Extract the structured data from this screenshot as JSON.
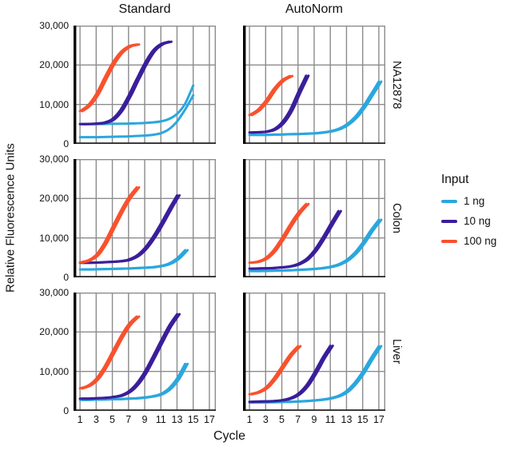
{
  "figure": {
    "col_titles": [
      "Standard",
      "AutoNorm"
    ],
    "row_titles": [
      "NA12878",
      "Colon",
      "Liver"
    ],
    "ylabel": "Relative Fluorescence Units",
    "xlabel": "Cycle",
    "y_ticks": [
      "30,000",
      "20,000",
      "10,000",
      "0"
    ],
    "x_ticks": [
      "1",
      "3",
      "5",
      "7",
      "9",
      "11",
      "13",
      "15",
      "17"
    ]
  },
  "legend": {
    "title": "Input",
    "items": [
      {
        "label": "1 ng",
        "color": "#2aa7de"
      },
      {
        "label": "10 ng",
        "color": "#3a1e9b"
      },
      {
        "label": "100 ng",
        "color": "#f9512d"
      }
    ]
  },
  "colors": {
    "grid": "#8c8c8c",
    "spine": "#000000",
    "bottom_axis": "#222222",
    "blue": "#2aa7de",
    "purple": "#3a1e9b",
    "orange": "#f9512d"
  },
  "chart_data": [
    {
      "type": "line",
      "col": "Standard",
      "row": "NA12878",
      "x_range": [
        1,
        17
      ],
      "ylim": [
        0,
        30000
      ],
      "series": [
        {
          "name": "1 ng",
          "color": "#2aa7de",
          "values": [
            5000,
            5000,
            5000,
            5050,
            5100,
            5100,
            5150,
            5200,
            5300,
            5450,
            5700,
            6300,
            7600,
            10200,
            14800,
            null,
            null
          ],
          "rep2": [
            1700,
            1700,
            1700,
            1750,
            1800,
            1850,
            1900,
            2000,
            2100,
            2300,
            2700,
            3700,
            5700,
            8700,
            12300,
            null,
            null
          ]
        },
        {
          "name": "10 ng",
          "color": "#3a1e9b",
          "values": [
            5000,
            5050,
            5150,
            5400,
            6300,
            8600,
            12200,
            16400,
            20400,
            23600,
            25300,
            25900,
            null,
            null,
            null,
            null,
            null
          ]
        },
        {
          "name": "100 ng",
          "color": "#f9512d",
          "values": [
            8300,
            9800,
            12600,
            16600,
            20400,
            23200,
            24700,
            25200,
            null,
            null,
            null,
            null,
            null,
            null,
            null,
            null,
            null
          ]
        }
      ]
    },
    {
      "type": "line",
      "col": "AutoNorm",
      "row": "NA12878",
      "x_range": [
        1,
        17
      ],
      "ylim": [
        0,
        30000
      ],
      "series": [
        {
          "name": "1 ng",
          "color": "#2aa7de",
          "values": [
            2300,
            2300,
            2300,
            2350,
            2400,
            2450,
            2500,
            2600,
            2700,
            2900,
            3200,
            3800,
            4900,
            6700,
            9300,
            12500,
            15800
          ]
        },
        {
          "name": "10 ng",
          "color": "#3a1e9b",
          "values": [
            2900,
            2950,
            3100,
            3700,
            5400,
            8500,
            13000,
            17300,
            null,
            null,
            null,
            null,
            null,
            null,
            null,
            null,
            null
          ]
        },
        {
          "name": "100 ng",
          "color": "#f9512d",
          "values": [
            7300,
            8600,
            10900,
            13900,
            16100,
            17200,
            null,
            null,
            null,
            null,
            null,
            null,
            null,
            null,
            null,
            null,
            null
          ]
        }
      ]
    },
    {
      "type": "line",
      "col": "Standard",
      "row": "Colon",
      "x_range": [
        1,
        17
      ],
      "ylim": [
        0,
        30000
      ],
      "series": [
        {
          "name": "1 ng",
          "color": "#2aa7de",
          "values": [
            2000,
            2000,
            2050,
            2100,
            2150,
            2200,
            2250,
            2350,
            2450,
            2600,
            2900,
            3500,
            4800,
            6900,
            null,
            null,
            null
          ]
        },
        {
          "name": "10 ng",
          "color": "#3a1e9b",
          "values": [
            3700,
            3700,
            3750,
            3850,
            3950,
            4100,
            4500,
            5500,
            7400,
            10200,
            13600,
            17300,
            20800,
            null,
            null,
            null,
            null
          ]
        },
        {
          "name": "100 ng",
          "color": "#f9512d",
          "values": [
            3800,
            4300,
            5700,
            8700,
            12700,
            16700,
            20200,
            22800,
            null,
            null,
            null,
            null,
            null,
            null,
            null,
            null,
            null
          ]
        }
      ]
    },
    {
      "type": "line",
      "col": "AutoNorm",
      "row": "Colon",
      "x_range": [
        1,
        17
      ],
      "ylim": [
        0,
        30000
      ],
      "series": [
        {
          "name": "1 ng",
          "color": "#2aa7de",
          "values": [
            1600,
            1600,
            1650,
            1700,
            1750,
            1800,
            1900,
            2000,
            2150,
            2350,
            2700,
            3300,
            4400,
            6200,
            8800,
            11900,
            14600
          ]
        },
        {
          "name": "10 ng",
          "color": "#3a1e9b",
          "values": [
            2200,
            2250,
            2300,
            2400,
            2550,
            2800,
            3400,
            4600,
            6800,
            9900,
            13400,
            16800,
            null,
            null,
            null,
            null,
            null
          ]
        },
        {
          "name": "100 ng",
          "color": "#f9512d",
          "values": [
            3700,
            4000,
            4900,
            6900,
            9900,
            13300,
            16300,
            18600,
            null,
            null,
            null,
            null,
            null,
            null,
            null,
            null,
            null
          ]
        }
      ]
    },
    {
      "type": "line",
      "col": "Standard",
      "row": "Liver",
      "x_range": [
        1,
        17
      ],
      "ylim": [
        0,
        30000
      ],
      "series": [
        {
          "name": "1 ng",
          "color": "#2aa7de",
          "values": [
            2800,
            2800,
            2850,
            2900,
            2950,
            3000,
            3100,
            3200,
            3400,
            3700,
            4300,
            5700,
            8200,
            11900,
            null,
            null,
            null
          ]
        },
        {
          "name": "10 ng",
          "color": "#3a1e9b",
          "values": [
            3100,
            3100,
            3200,
            3300,
            3500,
            3900,
            4900,
            6900,
            9900,
            13700,
            17700,
            21500,
            24500,
            null,
            null,
            null,
            null
          ]
        },
        {
          "name": "100 ng",
          "color": "#f9512d",
          "values": [
            5700,
            6400,
            8100,
            11100,
            14900,
            18700,
            21900,
            23900,
            null,
            null,
            null,
            null,
            null,
            null,
            null,
            null,
            null
          ]
        }
      ]
    },
    {
      "type": "line",
      "col": "AutoNorm",
      "row": "Liver",
      "x_range": [
        1,
        17
      ],
      "ylim": [
        0,
        30000
      ],
      "series": [
        {
          "name": "1 ng",
          "color": "#2aa7de",
          "values": [
            2100,
            2100,
            2150,
            2200,
            2250,
            2300,
            2400,
            2500,
            2650,
            2850,
            3200,
            3800,
            5000,
            7100,
            9900,
            13300,
            16400
          ]
        },
        {
          "name": "10 ng",
          "color": "#3a1e9b",
          "values": [
            2300,
            2350,
            2400,
            2500,
            2700,
            3200,
            4300,
            6400,
            9600,
            13300,
            16500,
            null,
            null,
            null,
            null,
            null,
            null
          ]
        },
        {
          "name": "100 ng",
          "color": "#f9512d",
          "values": [
            4200,
            4700,
            5900,
            8200,
            11200,
            14200,
            16400,
            null,
            null,
            null,
            null,
            null,
            null,
            null,
            null,
            null,
            null
          ]
        }
      ]
    }
  ]
}
